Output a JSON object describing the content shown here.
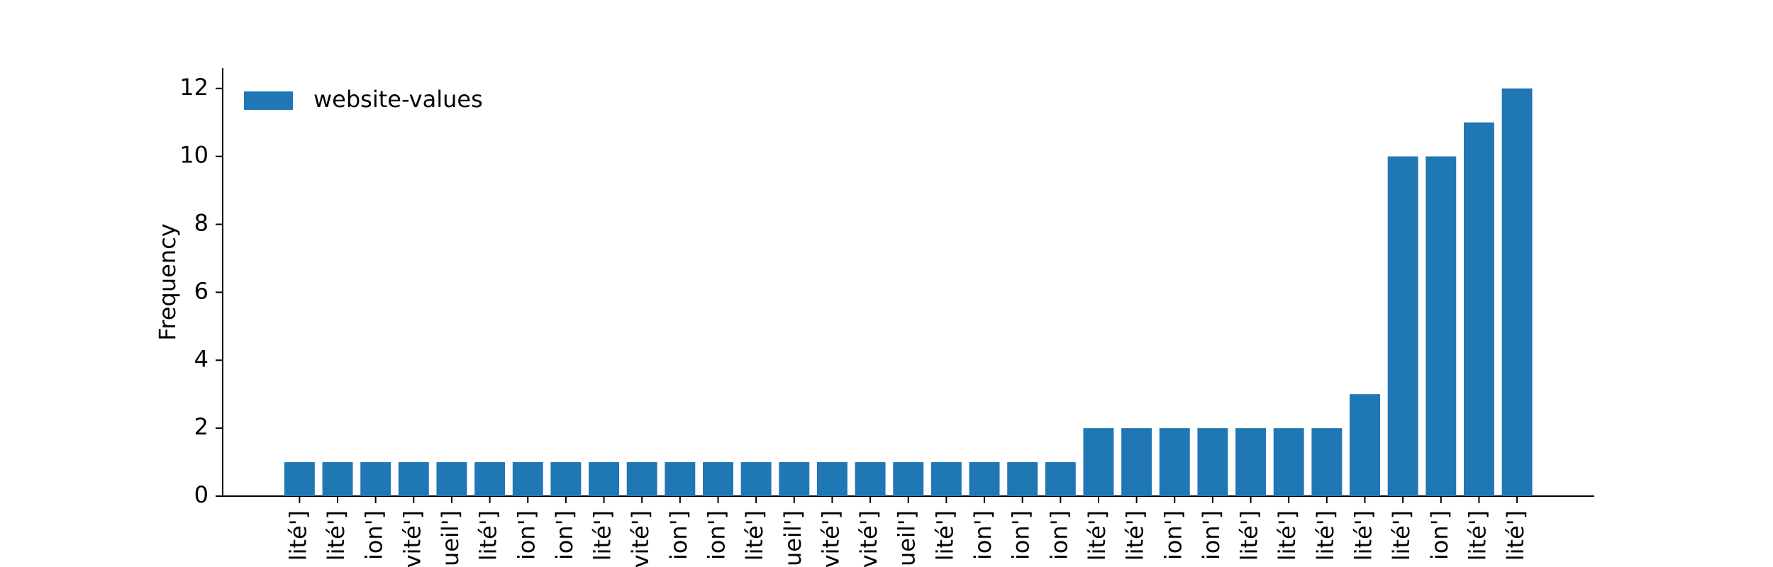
{
  "chart_data": {
    "type": "bar",
    "y_label": "Frequency",
    "legend": "upper left",
    "series": [
      {
        "name": "website-values",
        "color": "#1f77b4",
        "values": [
          1,
          1,
          1,
          1,
          1,
          1,
          1,
          1,
          1,
          1,
          1,
          1,
          1,
          1,
          1,
          1,
          1,
          1,
          1,
          1,
          1,
          2,
          2,
          2,
          2,
          2,
          2,
          2,
          3,
          10,
          10,
          11,
          12
        ]
      }
    ],
    "categories": [
      "lité']",
      "lité']",
      "ion']",
      "vité']",
      "ueil']",
      "lité']",
      "ion']",
      "ion']",
      "lité']",
      "vité']",
      "ion']",
      "ion']",
      "lité']",
      "ueil']",
      "vité']",
      "vité']",
      "ueil']",
      "lité']",
      "ion']",
      "ion']",
      "ion']",
      "lité']",
      "lité']",
      "ion']",
      "ion']",
      "lité']",
      "lité']",
      "lité']",
      "lité']",
      "lité']",
      "ion']",
      "lité']",
      "lité']"
    ],
    "ylim": [
      0,
      12.6
    ],
    "yticks": [
      0,
      2,
      4,
      6,
      8,
      10,
      12
    ]
  }
}
